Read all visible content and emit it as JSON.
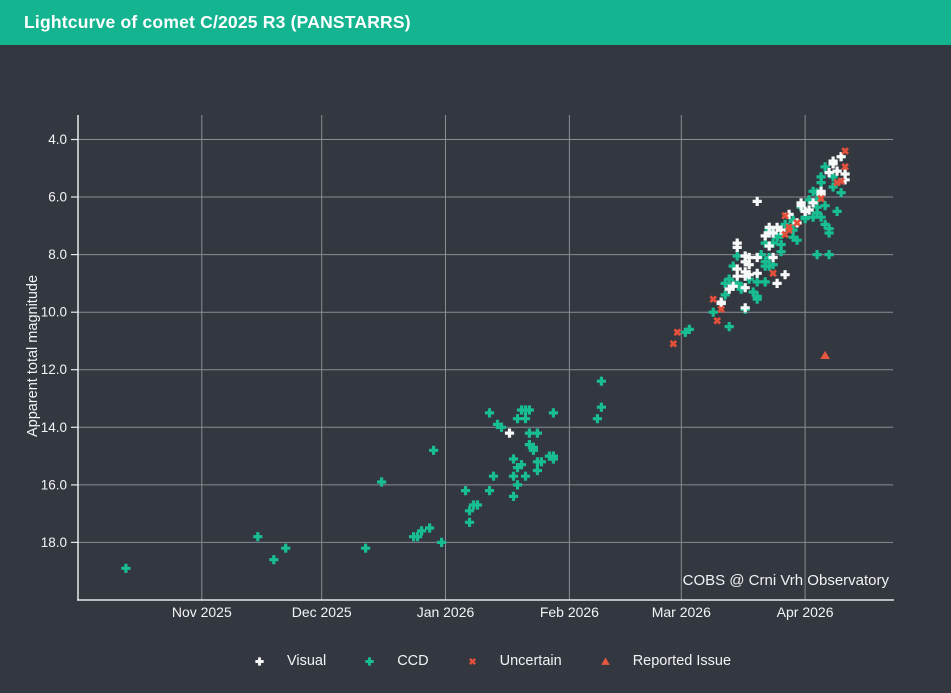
{
  "header": {
    "title": "Lightcurve of comet C/2025 R3 (PANSTARRS)"
  },
  "colors": {
    "titlebar": "#14b491",
    "page_bg": "#33373f",
    "grid": "#8a8d92",
    "axis": "#e7e9ea",
    "text": "#f2f3f4",
    "visual": "#f7f8f8",
    "ccd": "#19bd92",
    "uncertain": "#e3503c",
    "issue": "#e3583f"
  },
  "chart_data": {
    "type": "scatter",
    "title": "Lightcurve of comet C/2025 R3 (PANSTARRS)",
    "xlabel": "",
    "ylabel": "Apparent total magnitude",
    "watermark": "COBS @ Crni Vrh Observatory",
    "grid": true,
    "legend_position": "bottom",
    "x_axis": {
      "type": "date",
      "range": [
        "2025-10-01",
        "2026-04-23"
      ],
      "ticks": [
        {
          "date": "2025-11-01",
          "label": "Nov 2025"
        },
        {
          "date": "2025-12-01",
          "label": "Dec 2025"
        },
        {
          "date": "2026-01-01",
          "label": "Jan 2026"
        },
        {
          "date": "2026-02-01",
          "label": "Feb 2026"
        },
        {
          "date": "2026-03-01",
          "label": "Mar 2026"
        },
        {
          "date": "2026-04-01",
          "label": "Apr 2026"
        }
      ]
    },
    "y_axis": {
      "inverted": true,
      "range": [
        3.15,
        20.0
      ],
      "ticks": [
        4,
        6,
        8,
        10,
        12,
        14,
        16,
        18
      ],
      "tick_labels": [
        "4.0",
        "6.0",
        "8.0",
        "10.0",
        "12.0",
        "14.0",
        "16.0",
        "18.0"
      ]
    },
    "series": [
      {
        "name": "CCD",
        "marker": "plus",
        "color": "#19bd92",
        "points": [
          [
            "2025-10-13",
            18.9
          ],
          [
            "2025-11-15",
            17.8
          ],
          [
            "2025-11-19",
            18.6
          ],
          [
            "2025-11-22",
            18.2
          ],
          [
            "2025-12-12",
            18.2
          ],
          [
            "2025-12-16",
            15.9
          ],
          [
            "2025-12-24",
            17.8
          ],
          [
            "2025-12-25",
            17.8
          ],
          [
            "2025-12-26",
            17.6
          ],
          [
            "2025-12-28",
            17.5
          ],
          [
            "2025-12-29",
            14.8
          ],
          [
            "2025-12-31",
            18.0
          ],
          [
            "2026-01-06",
            16.2
          ],
          [
            "2026-01-07",
            16.9
          ],
          [
            "2026-01-07",
            17.3
          ],
          [
            "2026-01-08",
            16.7
          ],
          [
            "2026-01-09",
            16.7
          ],
          [
            "2026-01-12",
            13.5
          ],
          [
            "2026-01-12",
            16.2
          ],
          [
            "2026-01-13",
            15.7
          ],
          [
            "2026-01-14",
            13.9
          ],
          [
            "2026-01-15",
            14.0
          ],
          [
            "2026-01-18",
            15.1
          ],
          [
            "2026-01-18",
            15.7
          ],
          [
            "2026-01-18",
            16.4
          ],
          [
            "2026-01-19",
            13.7
          ],
          [
            "2026-01-19",
            15.4
          ],
          [
            "2026-01-19",
            16.0
          ],
          [
            "2026-01-20",
            13.4
          ],
          [
            "2026-01-20",
            15.3
          ],
          [
            "2026-01-21",
            13.4
          ],
          [
            "2026-01-21",
            13.7
          ],
          [
            "2026-01-21",
            15.7
          ],
          [
            "2026-01-22",
            13.4
          ],
          [
            "2026-01-22",
            14.2
          ],
          [
            "2026-01-22",
            14.6
          ],
          [
            "2026-01-23",
            14.7
          ],
          [
            "2026-01-23",
            14.8
          ],
          [
            "2026-01-24",
            14.2
          ],
          [
            "2026-01-24",
            15.2
          ],
          [
            "2026-01-24",
            15.5
          ],
          [
            "2026-01-25",
            15.2
          ],
          [
            "2026-01-27",
            15.0
          ],
          [
            "2026-01-28",
            13.5
          ],
          [
            "2026-01-28",
            15.0
          ],
          [
            "2026-01-28",
            15.1
          ],
          [
            "2026-02-08",
            13.7
          ],
          [
            "2026-02-09",
            12.4
          ],
          [
            "2026-02-09",
            13.3
          ],
          [
            "2026-03-02",
            10.7
          ],
          [
            "2026-03-03",
            10.6
          ],
          [
            "2026-03-09",
            10.0
          ],
          [
            "2026-03-12",
            9.0
          ],
          [
            "2026-03-12",
            9.4
          ],
          [
            "2026-03-13",
            8.85
          ],
          [
            "2026-03-13",
            10.5
          ],
          [
            "2026-03-14",
            8.4
          ],
          [
            "2026-03-14",
            9.05
          ],
          [
            "2026-03-15",
            8.05
          ],
          [
            "2026-03-15",
            9.0
          ],
          [
            "2026-03-16",
            9.1
          ],
          [
            "2026-03-16",
            9.2
          ],
          [
            "2026-03-17",
            9.9
          ],
          [
            "2026-03-18",
            8.85
          ],
          [
            "2026-03-19",
            9.3
          ],
          [
            "2026-03-20",
            8.95
          ],
          [
            "2026-03-20",
            9.45
          ],
          [
            "2026-03-20",
            9.55
          ],
          [
            "2026-03-21",
            8.0
          ],
          [
            "2026-03-22",
            7.6
          ],
          [
            "2026-03-22",
            8.25
          ],
          [
            "2026-03-22",
            8.4
          ],
          [
            "2026-03-22",
            8.95
          ],
          [
            "2026-03-23",
            7.15
          ],
          [
            "2026-03-23",
            8.1
          ],
          [
            "2026-03-23",
            8.4
          ],
          [
            "2026-03-24",
            7.6
          ],
          [
            "2026-03-24",
            8.35
          ],
          [
            "2026-03-25",
            7.4
          ],
          [
            "2026-03-26",
            7.3
          ],
          [
            "2026-03-26",
            7.65
          ],
          [
            "2026-03-26",
            7.9
          ],
          [
            "2026-03-27",
            6.95
          ],
          [
            "2026-03-29",
            6.8
          ],
          [
            "2026-03-29",
            6.85
          ],
          [
            "2026-03-29",
            7.15
          ],
          [
            "2026-03-29",
            7.4
          ],
          [
            "2026-03-30",
            7.5
          ],
          [
            "2026-03-31",
            6.35
          ],
          [
            "2026-04-01",
            6.7
          ],
          [
            "2026-04-01",
            6.75
          ],
          [
            "2026-04-02",
            6.1
          ],
          [
            "2026-04-03",
            5.8
          ],
          [
            "2026-04-03",
            6.7
          ],
          [
            "2026-04-04",
            5.85
          ],
          [
            "2026-04-04",
            6.1
          ],
          [
            "2026-04-04",
            6.35
          ],
          [
            "2026-04-04",
            6.55
          ],
          [
            "2026-04-04",
            8.0
          ],
          [
            "2026-04-05",
            5.3
          ],
          [
            "2026-04-05",
            5.5
          ],
          [
            "2026-04-05",
            6.7
          ],
          [
            "2026-04-06",
            4.95
          ],
          [
            "2026-04-06",
            6.3
          ],
          [
            "2026-04-06",
            6.95
          ],
          [
            "2026-04-07",
            7.1
          ],
          [
            "2026-04-07",
            7.25
          ],
          [
            "2026-04-07",
            8.0
          ],
          [
            "2026-04-08",
            5.3
          ],
          [
            "2026-04-08",
            5.65
          ],
          [
            "2026-04-09",
            6.5
          ],
          [
            "2026-04-10",
            4.6
          ],
          [
            "2026-04-10",
            5.85
          ]
        ]
      },
      {
        "name": "Visual",
        "marker": "plus",
        "color": "#f7f8f8",
        "points": [
          [
            "2026-01-17",
            14.2
          ],
          [
            "2026-03-11",
            9.7
          ],
          [
            "2026-03-11",
            9.65
          ],
          [
            "2026-03-13",
            9.2
          ],
          [
            "2026-03-14",
            9.1
          ],
          [
            "2026-03-15",
            7.6
          ],
          [
            "2026-03-15",
            7.75
          ],
          [
            "2026-03-15",
            8.5
          ],
          [
            "2026-03-15",
            8.75
          ],
          [
            "2026-03-17",
            8.05
          ],
          [
            "2026-03-17",
            8.25
          ],
          [
            "2026-03-17",
            8.6
          ],
          [
            "2026-03-17",
            8.75
          ],
          [
            "2026-03-17",
            9.15
          ],
          [
            "2026-03-17",
            9.85
          ],
          [
            "2026-03-18",
            8.1
          ],
          [
            "2026-03-18",
            8.35
          ],
          [
            "2026-03-18",
            8.7
          ],
          [
            "2026-03-20",
            6.15
          ],
          [
            "2026-03-20",
            8.1
          ],
          [
            "2026-03-20",
            8.65
          ],
          [
            "2026-03-22",
            7.35
          ],
          [
            "2026-03-23",
            7.05
          ],
          [
            "2026-03-23",
            7.25
          ],
          [
            "2026-03-23",
            7.7
          ],
          [
            "2026-03-24",
            7.25
          ],
          [
            "2026-03-24",
            8.1
          ],
          [
            "2026-03-25",
            7.05
          ],
          [
            "2026-03-25",
            9.0
          ],
          [
            "2026-03-26",
            7.15
          ],
          [
            "2026-03-27",
            8.7
          ],
          [
            "2026-03-28",
            6.6
          ],
          [
            "2026-03-30",
            6.9
          ],
          [
            "2026-03-31",
            6.2
          ],
          [
            "2026-03-31",
            6.3
          ],
          [
            "2026-04-01",
            6.5
          ],
          [
            "2026-04-02",
            6.45
          ],
          [
            "2026-04-03",
            6.2
          ],
          [
            "2026-04-05",
            5.8
          ],
          [
            "2026-04-05",
            5.9
          ],
          [
            "2026-04-07",
            5.15
          ],
          [
            "2026-04-08",
            4.75
          ],
          [
            "2026-04-08",
            4.85
          ],
          [
            "2026-04-09",
            5.1
          ],
          [
            "2026-04-10",
            4.6
          ],
          [
            "2026-04-11",
            5.2
          ],
          [
            "2026-04-11",
            5.4
          ]
        ]
      },
      {
        "name": "Uncertain",
        "marker": "x",
        "color": "#e3503c",
        "points": [
          [
            "2026-02-27",
            11.1
          ],
          [
            "2026-02-28",
            10.7
          ],
          [
            "2026-03-09",
            9.55
          ],
          [
            "2026-03-10",
            10.3
          ],
          [
            "2026-03-11",
            9.9
          ],
          [
            "2026-03-24",
            8.65
          ],
          [
            "2026-03-27",
            6.65
          ],
          [
            "2026-03-27",
            7.3
          ],
          [
            "2026-03-28",
            7.05
          ],
          [
            "2026-03-28",
            7.15
          ],
          [
            "2026-03-30",
            6.9
          ],
          [
            "2026-04-05",
            6.05
          ],
          [
            "2026-04-09",
            5.5
          ],
          [
            "2026-04-10",
            5.45
          ],
          [
            "2026-04-11",
            4.4
          ],
          [
            "2026-04-11",
            4.95
          ]
        ]
      },
      {
        "name": "Reported Issue",
        "marker": "triangle",
        "color": "#e3583f",
        "points": [
          [
            "2026-04-06",
            11.5
          ]
        ]
      }
    ]
  }
}
